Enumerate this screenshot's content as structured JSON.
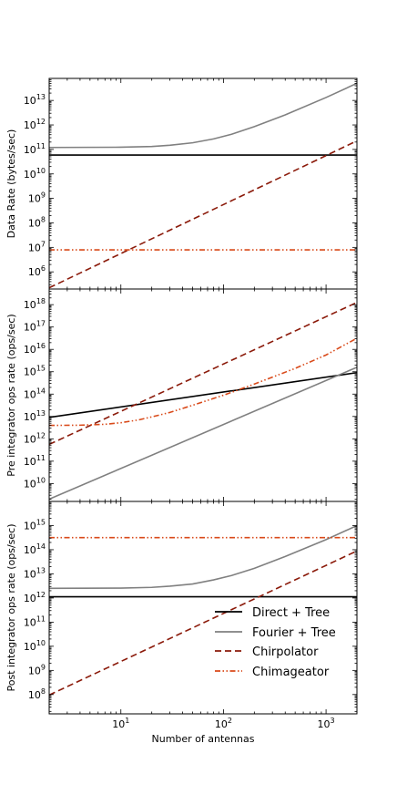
{
  "chart_data": {
    "type": "line",
    "xscale": "log",
    "yscale": "log",
    "xlim": [
      2,
      2000
    ],
    "xlabel": "Number of antennas",
    "x_tick_values": [
      10,
      100,
      1000
    ],
    "x_tick_labels": [
      "10^1",
      "10^2",
      "10^3"
    ],
    "legend": {
      "location": "lower-right (bottom panel)",
      "entries": [
        "Direct + Tree",
        "Fourier + Tree",
        "Chirpolator",
        "Chimageator"
      ]
    },
    "series_styles": [
      {
        "name": "Direct + Tree",
        "color": "#000000",
        "dash": "solid"
      },
      {
        "name": "Fourier + Tree",
        "color": "#808080",
        "dash": "solid"
      },
      {
        "name": "Chirpolator",
        "color": "#8b1a0a",
        "dash": "dashed"
      },
      {
        "name": "Chimageator",
        "color": "#d94a1a",
        "dash": "dash-dot-dot"
      }
    ],
    "panels": [
      {
        "ylabel": "Data Rate (bytes/sec)",
        "ylim_log10": [
          5.3,
          13.9
        ],
        "y_tick_exponents": [
          6,
          7,
          8,
          9,
          10,
          11,
          12,
          13
        ],
        "series": [
          {
            "name": "Direct + Tree",
            "x": [
              2,
              2000
            ],
            "log10_y": [
              10.77,
              10.77
            ]
          },
          {
            "name": "Fourier + Tree",
            "x": [
              2,
              10,
              20,
              30,
              50,
              80,
              120,
              200,
              400,
              1000,
              2000
            ],
            "log10_y": [
              11.08,
              11.09,
              11.12,
              11.17,
              11.27,
              11.43,
              11.62,
              11.93,
              12.41,
              13.12,
              13.7
            ]
          },
          {
            "name": "Chirpolator",
            "x": [
              2,
              2000
            ],
            "log10_y": [
              5.35,
              11.35
            ]
          },
          {
            "name": "Chimageator",
            "x": [
              2,
              2000
            ],
            "log10_y": [
              6.9,
              6.9
            ]
          }
        ]
      },
      {
        "ylabel": "Pre integrator ops rate (ops/sec)",
        "ylim_log10": [
          9.2,
          18.7
        ],
        "y_tick_exponents": [
          10,
          11,
          12,
          13,
          14,
          15,
          16,
          17,
          18
        ],
        "series": [
          {
            "name": "Direct + Tree",
            "x": [
              2,
              2000
            ],
            "log10_y": [
              12.96,
              14.96
            ]
          },
          {
            "name": "Fourier + Tree",
            "x": [
              2,
              2000
            ],
            "log10_y": [
              9.3,
              15.2
            ]
          },
          {
            "name": "Chirpolator",
            "x": [
              2,
              2000
            ],
            "log10_y": [
              11.75,
              18.1
            ]
          },
          {
            "name": "Chimageator",
            "x": [
              2,
              4,
              7,
              10,
              15,
              20,
              30,
              50,
              100,
              200,
              500,
              1000,
              2000
            ],
            "log10_y": [
              12.6,
              12.61,
              12.65,
              12.72,
              12.85,
              12.98,
              13.18,
              13.5,
              13.95,
              14.45,
              15.15,
              15.75,
              16.5
            ]
          }
        ]
      },
      {
        "ylabel": "Post integrator ops rate (ops/sec)",
        "ylim_log10": [
          7.2,
          16.0
        ],
        "y_tick_exponents": [
          8,
          9,
          10,
          11,
          12,
          13,
          14,
          15
        ],
        "series": [
          {
            "name": "Direct + Tree",
            "x": [
              2,
              2000
            ],
            "log10_y": [
              12.05,
              12.05
            ]
          },
          {
            "name": "Fourier + Tree",
            "x": [
              2,
              10,
              20,
              30,
              50,
              80,
              120,
              200,
              400,
              1000,
              2000
            ],
            "log10_y": [
              12.4,
              12.41,
              12.44,
              12.49,
              12.58,
              12.75,
              12.93,
              13.23,
              13.72,
              14.42,
              15.0
            ]
          },
          {
            "name": "Chirpolator",
            "x": [
              2,
              2000
            ],
            "log10_y": [
              7.98,
              13.95
            ]
          },
          {
            "name": "Chimageator",
            "x": [
              2,
              2000
            ],
            "log10_y": [
              14.5,
              14.5
            ]
          }
        ]
      }
    ]
  }
}
